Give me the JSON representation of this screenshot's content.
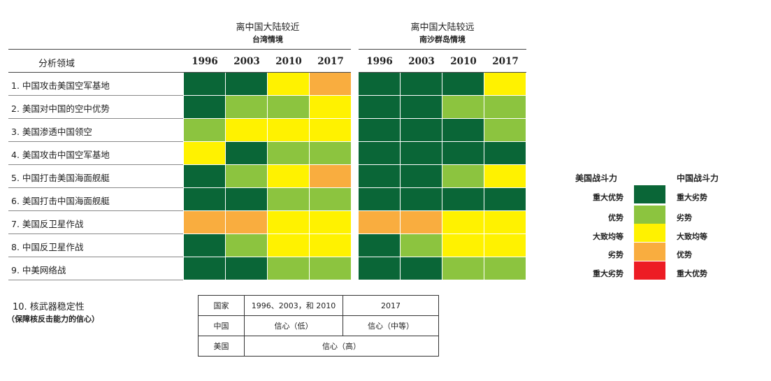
{
  "chart_data": {
    "type": "heatmap",
    "row_header": "分析领域",
    "years": [
      "1996",
      "2003",
      "2010",
      "2017"
    ],
    "rows": [
      "1. 中国攻击美国空军基地",
      "2. 美国对中国的空中优势",
      "3. 美国渗透中国领空",
      "4. 美国攻击中国空军基地",
      "5. 中国打击美国海面舰艇",
      "6. 美国打击中国海面舰艇",
      "7. 美国反卫星作战",
      "8. 中国反卫星作战",
      "9. 中美网络战"
    ],
    "scenarios": [
      {
        "title": "离中国大陆较近",
        "subtitle": "台湾情境",
        "levels": [
          [
            4,
            4,
            2,
            1
          ],
          [
            4,
            3,
            3,
            2
          ],
          [
            3,
            2,
            2,
            2
          ],
          [
            2,
            4,
            3,
            3
          ],
          [
            4,
            3,
            2,
            1
          ],
          [
            4,
            4,
            3,
            3
          ],
          [
            1,
            1,
            2,
            2
          ],
          [
            4,
            3,
            2,
            2
          ],
          [
            4,
            4,
            3,
            3
          ]
        ]
      },
      {
        "title": "离中国大陆较远",
        "subtitle": "南沙群岛情境",
        "levels": [
          [
            4,
            4,
            4,
            2
          ],
          [
            4,
            4,
            3,
            3
          ],
          [
            4,
            4,
            4,
            3
          ],
          [
            4,
            4,
            4,
            4
          ],
          [
            4,
            4,
            3,
            2
          ],
          [
            4,
            4,
            4,
            4
          ],
          [
            1,
            1,
            2,
            2
          ],
          [
            4,
            3,
            2,
            2
          ],
          [
            4,
            4,
            3,
            3
          ]
        ]
      }
    ],
    "legend": {
      "left_header": "美国战斗力",
      "right_header": "中国战斗力",
      "entries": [
        {
          "level": 4,
          "color": "#0a6637",
          "us": "重大优势",
          "cn": "重大劣势"
        },
        {
          "level": 3,
          "color": "#8cc43f",
          "us": "优势",
          "cn": "劣势"
        },
        {
          "level": 2,
          "color": "#fff200",
          "us": "大致均等",
          "cn": "大致均等"
        },
        {
          "level": 1,
          "color": "#f9ad3f",
          "us": "劣势",
          "cn": "优势"
        },
        {
          "level": 0,
          "color": "#ed1c24",
          "us": "重大劣势",
          "cn": "重大优势"
        }
      ]
    }
  },
  "nuclear": {
    "title": "10. 核武器稳定性",
    "subtitle": "（保障核反击能力的信心）",
    "table": {
      "header": [
        "国家",
        "1996、2003，和 2010",
        "2017"
      ],
      "china": [
        "中国",
        "信心（低）",
        "信心（中等）"
      ],
      "usa": [
        "美国",
        "信心（高）"
      ]
    }
  }
}
